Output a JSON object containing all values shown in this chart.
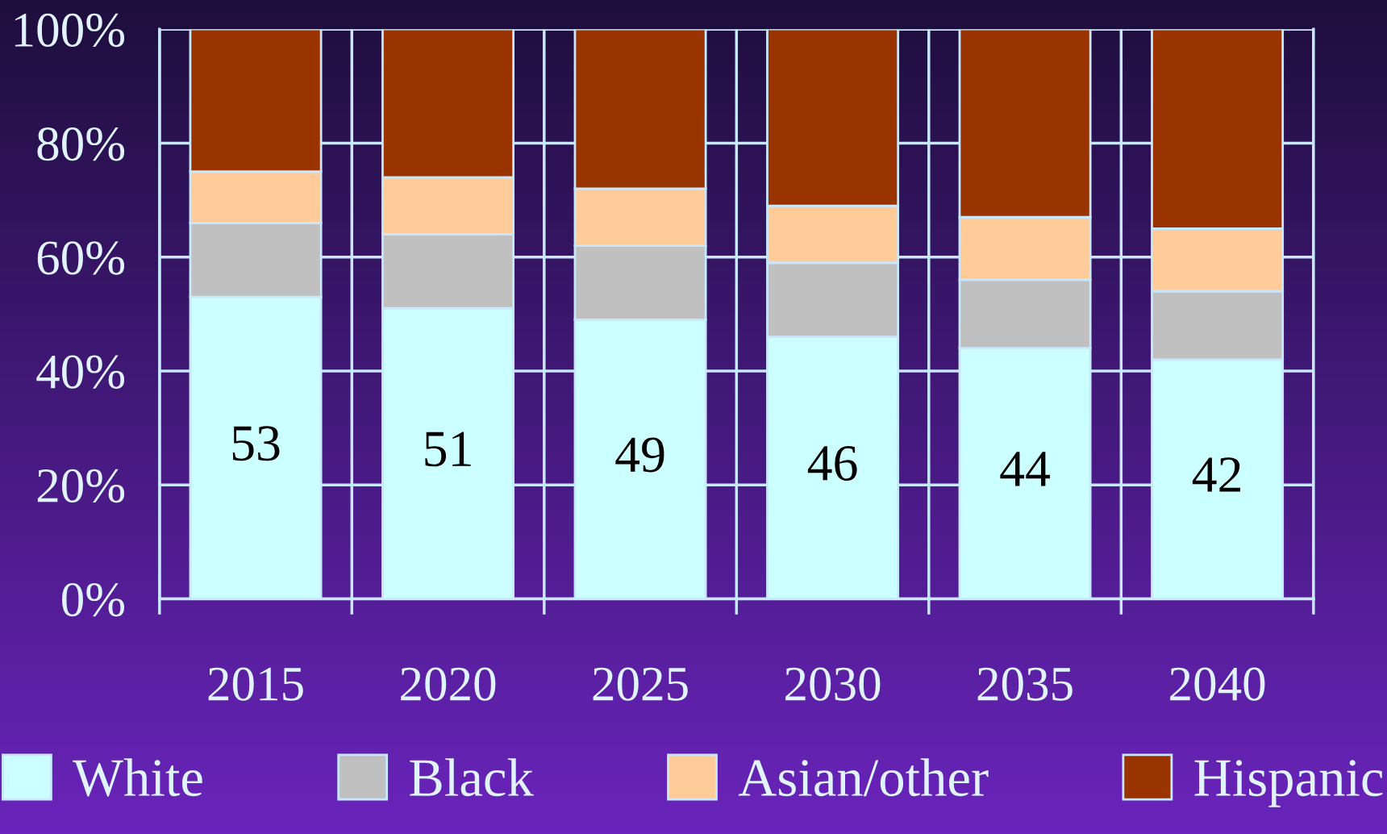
{
  "chart_data": {
    "type": "bar",
    "stacked": true,
    "categories": [
      "2015",
      "2020",
      "2025",
      "2030",
      "2035",
      "2040"
    ],
    "series": [
      {
        "name": "White",
        "color": "#ccffff",
        "values": [
          53,
          51,
          49,
          46,
          44,
          42
        ],
        "value_labels": [
          "53",
          "51",
          "49",
          "46",
          "44",
          "42"
        ]
      },
      {
        "name": "Black",
        "color": "#c0c0c0",
        "values": [
          13,
          13,
          13,
          13,
          12,
          12
        ]
      },
      {
        "name": "Asian/other",
        "color": "#ffcc99",
        "values": [
          9,
          10,
          10,
          10,
          11,
          11
        ]
      },
      {
        "name": "Hispanic",
        "color": "#993300",
        "values": [
          25,
          26,
          28,
          31,
          33,
          35
        ]
      }
    ],
    "ylim": [
      0,
      100
    ],
    "yticks": [
      {
        "value": 0,
        "label": "0%"
      },
      {
        "value": 20,
        "label": "20%"
      },
      {
        "value": 40,
        "label": "40%"
      },
      {
        "value": 60,
        "label": "60%"
      },
      {
        "value": 80,
        "label": "80%"
      },
      {
        "value": 100,
        "label": "100%"
      }
    ],
    "grid": true,
    "legend": "bottom"
  }
}
